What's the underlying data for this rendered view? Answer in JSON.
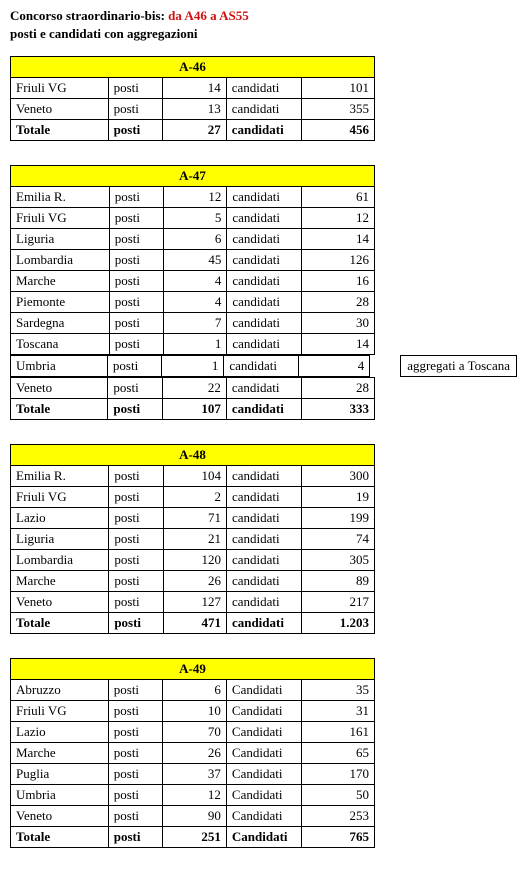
{
  "header": {
    "title_black": "Concorso straordinario-bis:",
    "title_red": "da A46 a AS55",
    "subtitle": "posti e candidati con aggregazioni"
  },
  "labels": {
    "posti": "posti",
    "candidati": "candidati",
    "candidati_cap": "Candidati",
    "totale": "Totale"
  },
  "tables": [
    {
      "code": "A-46",
      "cand_label_key": "candidati",
      "rows": [
        {
          "region": "Friuli VG",
          "posti": "14",
          "cand": "101"
        },
        {
          "region": "Veneto",
          "posti": "13",
          "cand": "355"
        }
      ],
      "total": {
        "posti": "27",
        "cand": "456"
      }
    },
    {
      "code": "A-47",
      "cand_label_key": "candidati",
      "rows": [
        {
          "region": "Emilia R.",
          "posti": "12",
          "cand": "61"
        },
        {
          "region": "Friuli VG",
          "posti": "5",
          "cand": "12"
        },
        {
          "region": "Liguria",
          "posti": "6",
          "cand": "14"
        },
        {
          "region": "Lombardia",
          "posti": "45",
          "cand": "126"
        },
        {
          "region": "Marche",
          "posti": "4",
          "cand": "16"
        },
        {
          "region": "Piemonte",
          "posti": "4",
          "cand": "28"
        },
        {
          "region": "Sardegna",
          "posti": "7",
          "cand": "30"
        },
        {
          "region": "Toscana",
          "posti": "1",
          "cand": "14"
        },
        {
          "region": "Umbria",
          "posti": "1",
          "cand": "4",
          "note": "aggregati a Toscana"
        },
        {
          "region": "Veneto",
          "posti": "22",
          "cand": "28"
        }
      ],
      "total": {
        "posti": "107",
        "cand": "333"
      }
    },
    {
      "code": "A-48",
      "cand_label_key": "candidati",
      "rows": [
        {
          "region": "Emilia R.",
          "posti": "104",
          "cand": "300"
        },
        {
          "region": "Friuli VG",
          "posti": "2",
          "cand": "19"
        },
        {
          "region": "Lazio",
          "posti": "71",
          "cand": "199"
        },
        {
          "region": "Liguria",
          "posti": "21",
          "cand": "74"
        },
        {
          "region": "Lombardia",
          "posti": "120",
          "cand": "305"
        },
        {
          "region": "Marche",
          "posti": "26",
          "cand": "89"
        },
        {
          "region": "Veneto",
          "posti": "127",
          "cand": "217"
        }
      ],
      "total": {
        "posti": "471",
        "cand": "1.203"
      }
    },
    {
      "code": "A-49",
      "cand_label_key": "candidati_cap",
      "rows": [
        {
          "region": "Abruzzo",
          "posti": "6",
          "cand": "35"
        },
        {
          "region": "Friuli VG",
          "posti": "10",
          "cand": "31"
        },
        {
          "region": "Lazio",
          "posti": "70",
          "cand": "161"
        },
        {
          "region": "Marche",
          "posti": "26",
          "cand": "65"
        },
        {
          "region": "Puglia",
          "posti": "37",
          "cand": "170"
        },
        {
          "region": "Umbria",
          "posti": "12",
          "cand": "50"
        },
        {
          "region": "Veneto",
          "posti": "90",
          "cand": "253"
        }
      ],
      "total": {
        "posti": "251",
        "cand": "765"
      }
    }
  ]
}
